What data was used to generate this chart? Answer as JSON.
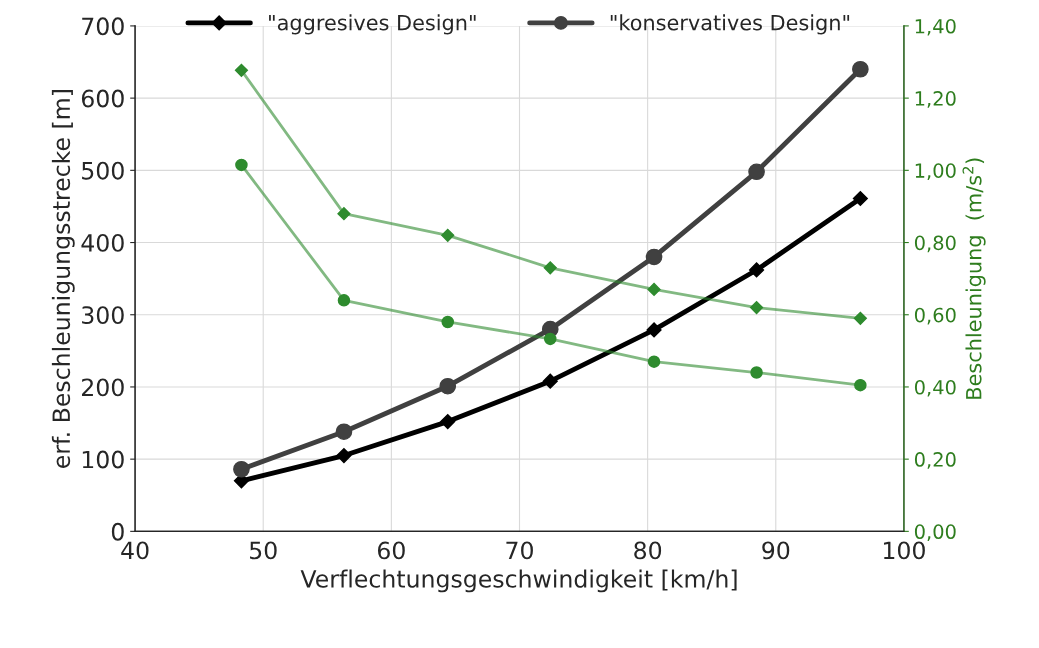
{
  "chart_data": {
    "type": "line",
    "xlabel": "Verflechtungsgeschwindigkeit [km/h]",
    "ylabel": "erf. Beschleunigungsstrecke [m]",
    "y2label": "Beschleunigung  (m/s$^{2}$)",
    "x": [
      48.3,
      56.3,
      64.4,
      72.4,
      80.5,
      88.5,
      96.6
    ],
    "series": [
      {
        "name": "\"aggresives Design\"",
        "color": "#000000",
        "marker": "diamond",
        "values": [
          70,
          105,
          152,
          208,
          279,
          362,
          461
        ]
      },
      {
        "name": "\"konservatives Design\"",
        "color": "#404040",
        "marker": "circle",
        "values": [
          86,
          138,
          201,
          280,
          380,
          498,
          640
        ]
      },
      {
        "color": "#2e8b2e",
        "marker": "diamond",
        "axis": "y2",
        "values": [
          1.277,
          0.88,
          0.82,
          0.73,
          0.67,
          0.62,
          0.59
        ]
      },
      {
        "color": "#2e8b2e",
        "marker": "circle",
        "axis": "y2",
        "values": [
          1.015,
          0.64,
          0.58,
          0.533,
          0.47,
          0.44,
          0.405
        ]
      }
    ],
    "xlim": [
      40,
      100
    ],
    "xticks": [
      40,
      50,
      60,
      70,
      80,
      90,
      100
    ],
    "ylim": [
      0,
      700
    ],
    "yticks": [
      0,
      100,
      200,
      300,
      400,
      500,
      600,
      700
    ],
    "y2lim": [
      0,
      1.4
    ],
    "y2ticks": [
      {
        "value": 0,
        "label": "0,00"
      },
      {
        "value": 0.2,
        "label": "0,20"
      },
      {
        "value": 0.4,
        "label": "0,40"
      },
      {
        "value": 0.6,
        "label": "0,60"
      },
      {
        "value": 0.8,
        "label": "0,80"
      },
      {
        "value": 1.0,
        "label": "1,00"
      },
      {
        "value": 1.2,
        "label": "1,20"
      },
      {
        "value": 1.4,
        "label": "1,40"
      }
    ],
    "grid": true,
    "legend": "top"
  }
}
